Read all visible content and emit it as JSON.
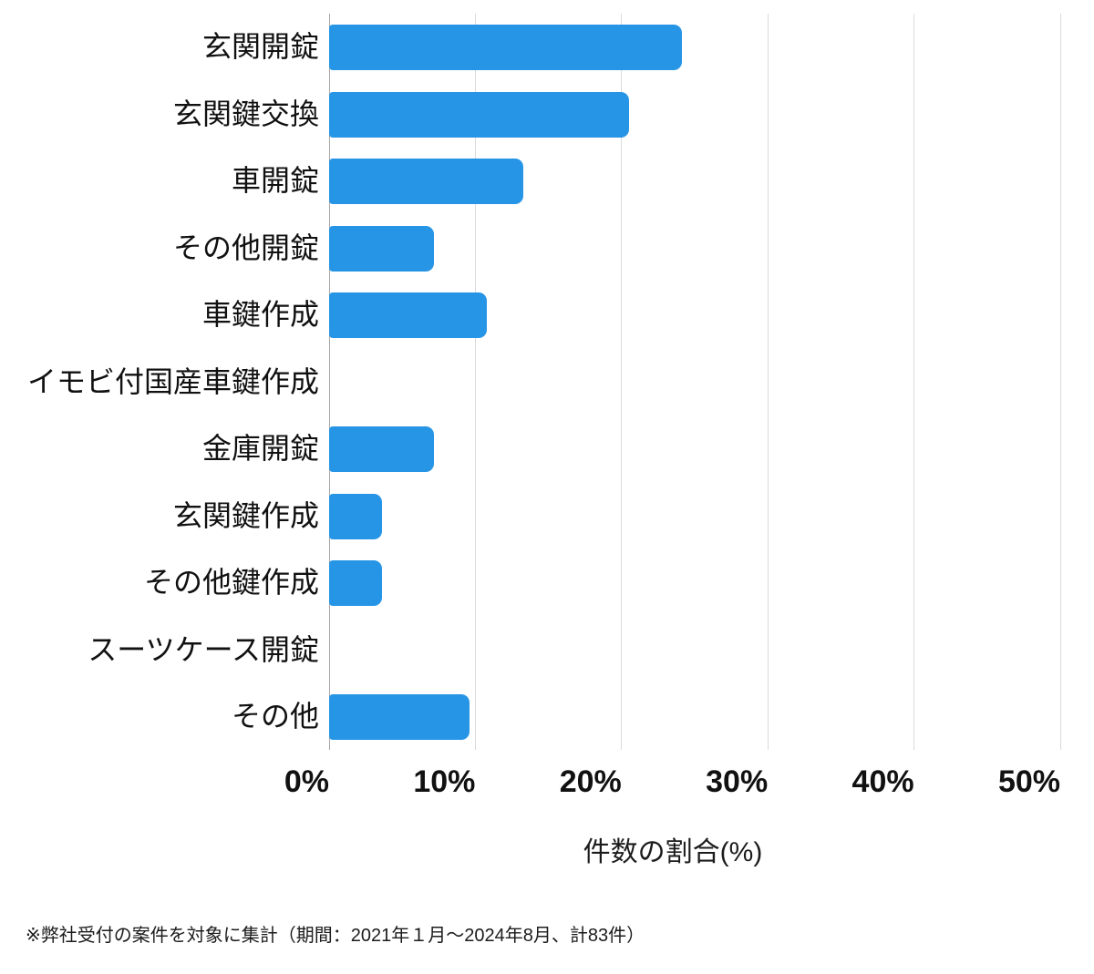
{
  "chart_data": {
    "type": "bar",
    "orientation": "horizontal",
    "categories": [
      "玄関開錠",
      "玄関鍵交換",
      "車開錠",
      "その他開錠",
      "車鍵作成",
      "イモビ付国産車鍵作成",
      "金庫開錠",
      "玄関鍵作成",
      "その他鍵作成",
      "スーツケース開錠",
      "その他"
    ],
    "values": [
      24.1,
      20.5,
      13.3,
      7.2,
      10.8,
      0,
      7.2,
      3.6,
      3.6,
      0,
      9.6
    ],
    "xlabel": "件数の割合(%)",
    "xlim": [
      0,
      50
    ],
    "xticks": [
      0,
      10,
      20,
      30,
      40,
      50
    ],
    "xtick_labels": [
      "0%",
      "10%",
      "20%",
      "30%",
      "40%",
      "50%"
    ],
    "grid": true,
    "legend": false,
    "bar_color": "#2795E6",
    "gridline_color": "#DADADA",
    "axis_line_color": "#A8A8A8",
    "text_color": "#111111"
  },
  "footnote": "※弊社受付の案件を対象に集計（期間：2021年１月～2024年8月、計83件）"
}
